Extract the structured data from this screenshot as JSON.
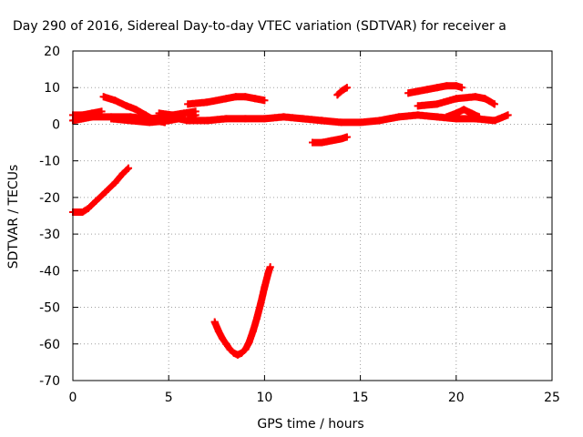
{
  "chart_data": {
    "type": "scatter",
    "title": "Day 290 of 2016, Sidereal Day-to-day VTEC variation (SDTVAR) for receiver a",
    "xlabel": "GPS time / hours",
    "ylabel": "SDTVAR / TECUs",
    "xlim": [
      0,
      25
    ],
    "ylim": [
      -70,
      20
    ],
    "xticks": [
      "0",
      "5",
      "10",
      "15",
      "20",
      "25"
    ],
    "yticks": [
      "20",
      "10",
      "0",
      "-10",
      "-20",
      "-30",
      "-40",
      "-50",
      "-60",
      "-70"
    ],
    "grid": true,
    "marker": "plus",
    "color": "#ff0000",
    "series": [
      {
        "points": [
          [
            0.0,
            1.0
          ],
          [
            0.5,
            1.5
          ],
          [
            1.0,
            2.0
          ],
          [
            2.0,
            2.0
          ],
          [
            3.0,
            2.0
          ],
          [
            4.0,
            1.5
          ],
          [
            5.0,
            2.0
          ],
          [
            6.0,
            1.0
          ],
          [
            7.0,
            1.0
          ],
          [
            8.0,
            1.5
          ],
          [
            9.0,
            1.5
          ],
          [
            10.0,
            1.5
          ],
          [
            11.0,
            2.0
          ],
          [
            12.0,
            1.5
          ],
          [
            13.0,
            1.0
          ],
          [
            14.0,
            0.5
          ],
          [
            15.0,
            0.5
          ],
          [
            16.0,
            1.0
          ],
          [
            17.0,
            2.0
          ],
          [
            18.0,
            2.5
          ],
          [
            19.0,
            2.0
          ],
          [
            20.0,
            1.5
          ],
          [
            21.0,
            1.5
          ],
          [
            22.0,
            1.0
          ],
          [
            22.7,
            2.5
          ]
        ]
      },
      {
        "points": [
          [
            0.0,
            2.5
          ],
          [
            0.5,
            2.5
          ],
          [
            1.0,
            3.0
          ],
          [
            1.5,
            3.5
          ]
        ]
      },
      {
        "points": [
          [
            1.6,
            7.5
          ],
          [
            2.2,
            6.5
          ],
          [
            2.8,
            5.0
          ],
          [
            3.3,
            4.0
          ],
          [
            3.8,
            2.5
          ],
          [
            4.3,
            1.0
          ],
          [
            4.8,
            0.5
          ]
        ]
      },
      {
        "points": [
          [
            2.0,
            1.5
          ],
          [
            3.0,
            1.0
          ],
          [
            4.0,
            0.5
          ],
          [
            5.0,
            1.0
          ],
          [
            5.5,
            1.5
          ]
        ]
      },
      {
        "points": [
          [
            4.5,
            3.0
          ],
          [
            5.2,
            2.5
          ],
          [
            5.8,
            3.0
          ],
          [
            6.4,
            3.5
          ]
        ]
      },
      {
        "points": [
          [
            6.0,
            1.5
          ],
          [
            6.4,
            2.5
          ]
        ]
      },
      {
        "points": [
          [
            6.0,
            5.5
          ],
          [
            7.0,
            6.0
          ],
          [
            8.0,
            7.0
          ],
          [
            8.5,
            7.5
          ],
          [
            9.0,
            7.5
          ],
          [
            9.5,
            7.0
          ],
          [
            10.0,
            6.5
          ]
        ]
      },
      {
        "points": [
          [
            12.5,
            -5.0
          ],
          [
            13.0,
            -5.0
          ],
          [
            13.5,
            -4.5
          ],
          [
            14.0,
            -4.0
          ],
          [
            14.3,
            -3.5
          ]
        ]
      },
      {
        "points": [
          [
            13.8,
            8.0
          ],
          [
            14.0,
            9.0
          ],
          [
            14.3,
            10.0
          ]
        ]
      },
      {
        "points": [
          [
            17.5,
            8.5
          ],
          [
            18.0,
            9.0
          ],
          [
            18.5,
            9.5
          ],
          [
            19.0,
            10.0
          ],
          [
            19.5,
            10.5
          ],
          [
            20.0,
            10.5
          ],
          [
            20.3,
            10.0
          ]
        ]
      },
      {
        "points": [
          [
            18.0,
            5.0
          ],
          [
            19.0,
            5.5
          ],
          [
            20.0,
            7.0
          ],
          [
            21.0,
            7.5
          ],
          [
            21.5,
            7.0
          ],
          [
            22.0,
            5.5
          ]
        ]
      },
      {
        "points": [
          [
            19.5,
            2.0
          ],
          [
            20.0,
            3.0
          ],
          [
            20.4,
            4.0
          ],
          [
            20.8,
            3.0
          ],
          [
            21.2,
            2.0
          ]
        ]
      },
      {
        "points": [
          [
            0.0,
            -24.0
          ],
          [
            0.5,
            -24.0
          ],
          [
            0.8,
            -23.0
          ],
          [
            1.2,
            -21.0
          ],
          [
            1.7,
            -18.5
          ],
          [
            2.2,
            -16.0
          ],
          [
            2.6,
            -13.5
          ],
          [
            2.9,
            -12.0
          ]
        ]
      },
      {
        "points": [
          [
            7.4,
            -54.0
          ],
          [
            7.6,
            -56.5
          ],
          [
            7.8,
            -58.5
          ],
          [
            8.0,
            -60.0
          ],
          [
            8.2,
            -61.5
          ],
          [
            8.4,
            -62.5
          ],
          [
            8.6,
            -63.0
          ],
          [
            8.8,
            -62.5
          ],
          [
            9.0,
            -61.5
          ],
          [
            9.2,
            -59.5
          ],
          [
            9.4,
            -56.5
          ],
          [
            9.6,
            -53.0
          ],
          [
            9.8,
            -49.0
          ],
          [
            10.0,
            -44.5
          ],
          [
            10.2,
            -40.5
          ],
          [
            10.3,
            -39.0
          ]
        ]
      }
    ]
  }
}
